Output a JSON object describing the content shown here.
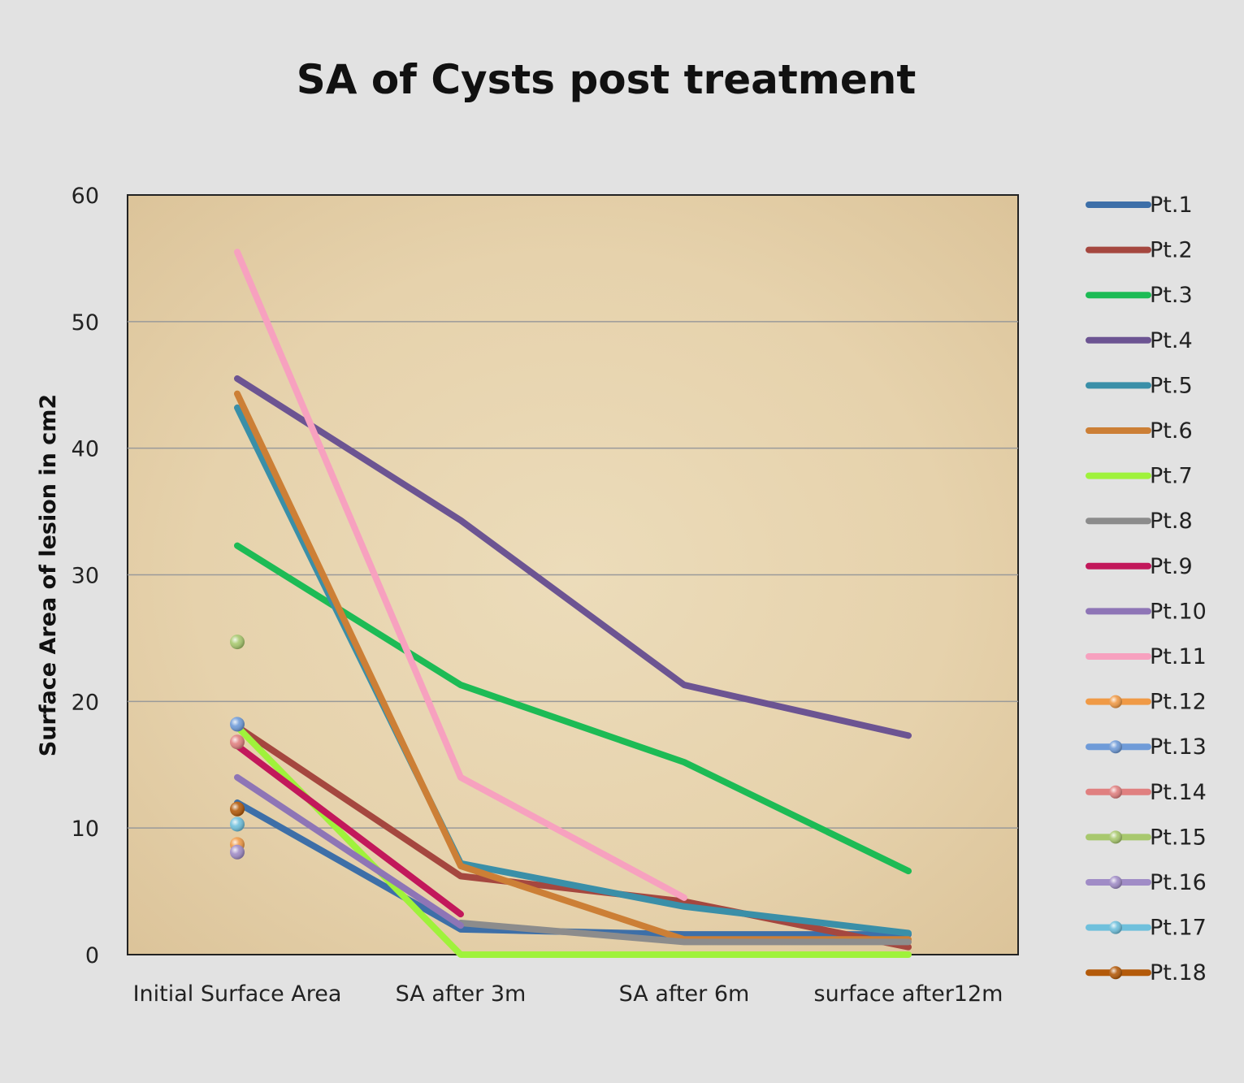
{
  "chart_data": {
    "type": "line",
    "title": "SA of Cysts post treatment",
    "xlabel": "",
    "ylabel": "Surface Area of lesion in cm2",
    "categories": [
      "Initial Surface Area",
      "SA after 3m",
      "SA after 6m",
      "surface after12m"
    ],
    "ylim": [
      0,
      60
    ],
    "yticks": [
      0,
      10,
      20,
      30,
      40,
      50,
      60
    ],
    "grid": true,
    "legend_position": "right",
    "series": [
      {
        "name": "Pt.1",
        "color": "#3d6fa8",
        "values": [
          12,
          2,
          1.6,
          1.6
        ]
      },
      {
        "name": "Pt.2",
        "color": "#a5473f",
        "values": [
          18,
          6.2,
          4.2,
          0.6
        ]
      },
      {
        "name": "Pt.3",
        "color": "#1dbb55",
        "values": [
          32.3,
          21.3,
          15.2,
          6.6
        ]
      },
      {
        "name": "Pt.4",
        "color": "#6c5492",
        "values": [
          45.5,
          34.3,
          21.3,
          17.3
        ]
      },
      {
        "name": "Pt.5",
        "color": "#3a8fa8",
        "values": [
          43.2,
          7.2,
          3.8,
          1.7
        ]
      },
      {
        "name": "Pt.6",
        "color": "#cc7f36",
        "values": [
          44.3,
          7,
          1.2,
          1.2
        ]
      },
      {
        "name": "Pt.7",
        "color": "#9ff23b",
        "values": [
          18,
          0,
          0,
          0
        ]
      },
      {
        "name": "Pt.8",
        "color": "#8c8c8c",
        "values": [
          null,
          2.5,
          1,
          1
        ]
      },
      {
        "name": "Pt.9",
        "color": "#c2185b",
        "values": [
          16.5,
          3.2,
          null,
          null
        ]
      },
      {
        "name": "Pt.10",
        "color": "#8e75b6",
        "values": [
          14,
          2.3,
          null,
          null
        ]
      },
      {
        "name": "Pt.11",
        "color": "#f7a1bf",
        "values": [
          55.5,
          14,
          4.5,
          null
        ]
      },
      {
        "name": "Pt.12",
        "color": "#f09a46",
        "values": [
          8.7,
          null,
          null,
          null
        ]
      },
      {
        "name": "Pt.13",
        "color": "#6f9bd8",
        "values": [
          18.2,
          null,
          null,
          null
        ]
      },
      {
        "name": "Pt.14",
        "color": "#e08080",
        "values": [
          16.8,
          null,
          null,
          null
        ]
      },
      {
        "name": "Pt.15",
        "color": "#a8c86e",
        "values": [
          24.7,
          null,
          null,
          null
        ]
      },
      {
        "name": "Pt.16",
        "color": "#a08cc6",
        "values": [
          8.1,
          null,
          null,
          null
        ]
      },
      {
        "name": "Pt.17",
        "color": "#6fc0dc",
        "values": [
          10.3,
          null,
          null,
          null
        ]
      },
      {
        "name": "Pt.18",
        "color": "#b35a0a",
        "values": [
          11.5,
          null,
          null,
          null
        ]
      }
    ]
  }
}
